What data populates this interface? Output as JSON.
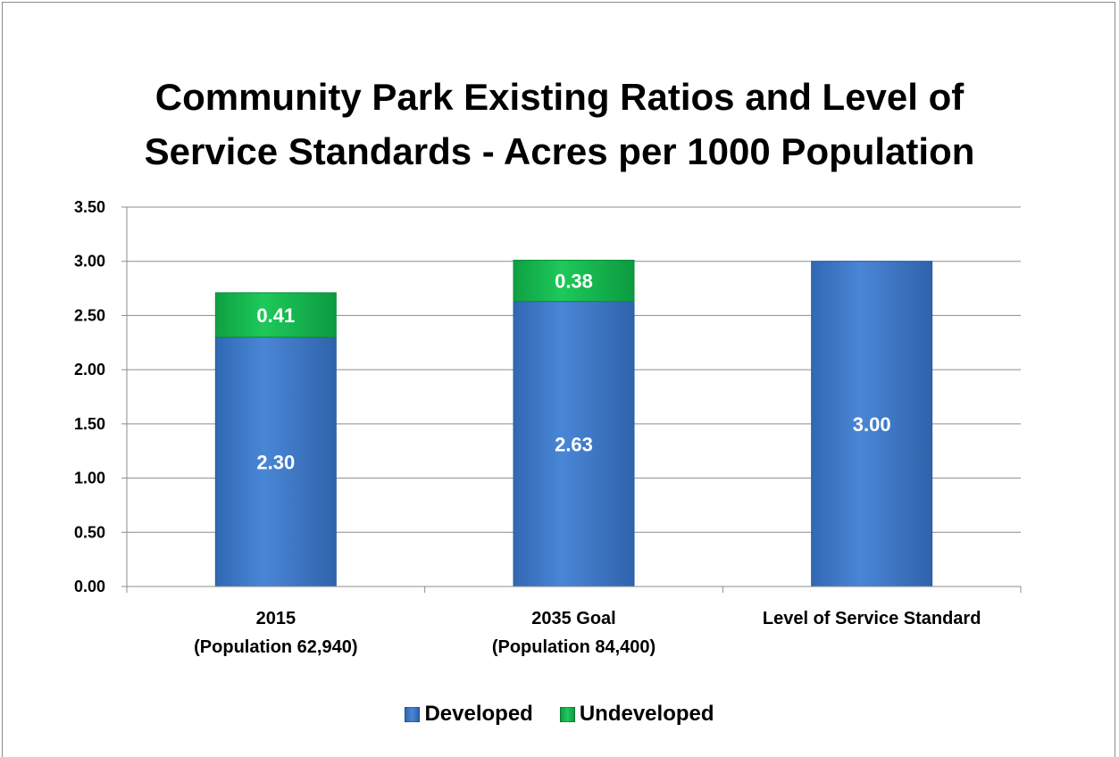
{
  "chart_data": {
    "type": "bar",
    "stacked": true,
    "title": "Community Park Existing Ratios and Level of Service Standards - Acres per 1000 Population",
    "title_lines": [
      "Community Park Existing Ratios and Level of",
      "Service Standards - Acres per 1000 Population"
    ],
    "categories": [
      [
        "2015",
        "(Population 62,940)"
      ],
      [
        "2035 Goal",
        "(Population 84,400)"
      ],
      [
        "Level of Service Standard"
      ]
    ],
    "series": [
      {
        "name": "Developed",
        "values": [
          2.3,
          2.63,
          3.0
        ],
        "labels": [
          "2.30",
          "2.63",
          "3.00"
        ],
        "color": "#3d79c8"
      },
      {
        "name": "Undeveloped",
        "values": [
          0.41,
          0.38,
          0
        ],
        "labels": [
          "0.41",
          "0.38",
          ""
        ],
        "color": "#17b850"
      }
    ],
    "ylim": [
      0,
      3.5
    ],
    "yticks": [
      "0.00",
      "0.50",
      "1.00",
      "1.50",
      "2.00",
      "2.50",
      "3.00",
      "3.50"
    ],
    "grid": true,
    "legend": "bottom"
  }
}
